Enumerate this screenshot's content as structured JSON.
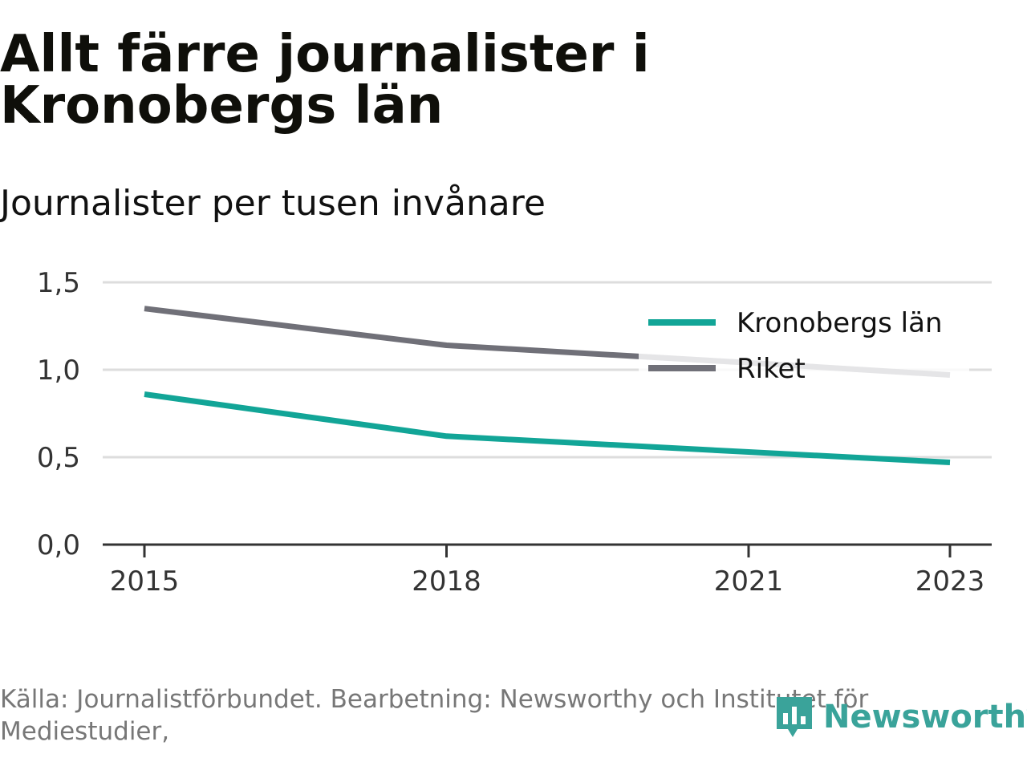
{
  "title": "Allt färre journalister i Kronobergs län",
  "subtitle": "Journalister per tusen invånare",
  "source": "Källa: Journalistförbundet. Bearbetning: Newsworthy och Institutet för Mediestudier,",
  "brand": {
    "name": "Newsworthy",
    "color": "#3aa39a",
    "icon": "bar-chart-icon"
  },
  "chart_data": {
    "type": "line",
    "x_ticks": [
      "2015",
      "2018",
      "2021",
      "2023"
    ],
    "y_ticks": [
      "1,5",
      "1,0",
      "0,5",
      "0,0"
    ],
    "ylim": [
      0,
      1.5
    ],
    "xlim": [
      2015,
      2023
    ],
    "grid": true,
    "legend_position": "top-right",
    "series": [
      {
        "name": "Kronobergs län",
        "color": "#12a597",
        "points": [
          {
            "x": 2015,
            "y": 0.86
          },
          {
            "x": 2018,
            "y": 0.62
          },
          {
            "x": 2021,
            "y": 0.53
          },
          {
            "x": 2023,
            "y": 0.47
          }
        ]
      },
      {
        "name": "Riket",
        "color": "#707078",
        "points": [
          {
            "x": 2015,
            "y": 1.35
          },
          {
            "x": 2018,
            "y": 1.14
          },
          {
            "x": 2021,
            "y": 1.04
          },
          {
            "x": 2023,
            "y": 0.97
          }
        ]
      }
    ]
  }
}
